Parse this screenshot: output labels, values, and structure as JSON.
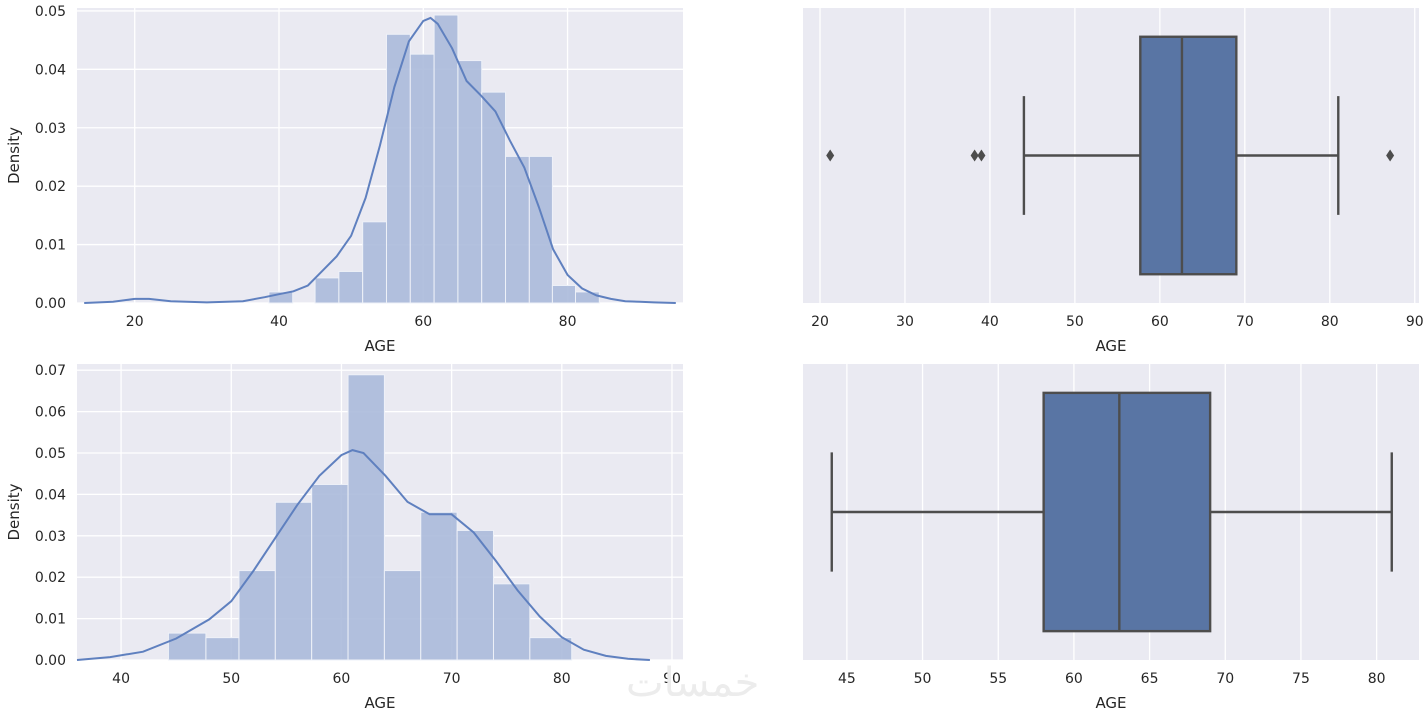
{
  "watermark": "خمسات",
  "colors": {
    "axes_bg": "#eaeaf2",
    "grid": "#ffffff",
    "hist": "#a8b8da",
    "kde": "#5f80bf",
    "box": "#5975a4",
    "box_edge": "#4d4d4d",
    "text": "#262626"
  },
  "chart_data": [
    {
      "type": "histogram",
      "xlabel": "AGE",
      "ylabel": "Density",
      "xlim": [
        12,
        96
      ],
      "ylim": [
        0,
        0.0505
      ],
      "xticks": [
        20,
        40,
        60,
        80
      ],
      "yticks": [
        0.0,
        0.01,
        0.02,
        0.03,
        0.04,
        0.05
      ],
      "ytick_labels": [
        "0.00",
        "0.01",
        "0.02",
        "0.03",
        "0.04",
        "0.05"
      ],
      "grid": true,
      "bins": [
        {
          "x0": 17.8,
          "x1": 21.2,
          "density": 0.0
        },
        {
          "x0": 38.6,
          "x1": 41.9,
          "density": 0.0019
        },
        {
          "x0": 45.0,
          "x1": 48.3,
          "density": 0.0043
        },
        {
          "x0": 48.3,
          "x1": 51.6,
          "density": 0.0054
        },
        {
          "x0": 51.6,
          "x1": 54.9,
          "density": 0.0139
        },
        {
          "x0": 54.9,
          "x1": 58.2,
          "density": 0.046
        },
        {
          "x0": 58.2,
          "x1": 61.5,
          "density": 0.0426
        },
        {
          "x0": 61.5,
          "x1": 64.8,
          "density": 0.0493
        },
        {
          "x0": 64.8,
          "x1": 68.1,
          "density": 0.0415
        },
        {
          "x0": 68.1,
          "x1": 71.4,
          "density": 0.0361
        },
        {
          "x0": 71.4,
          "x1": 74.7,
          "density": 0.0251
        },
        {
          "x0": 74.7,
          "x1": 77.9,
          "density": 0.0251
        },
        {
          "x0": 77.9,
          "x1": 81.1,
          "density": 0.003
        },
        {
          "x0": 81.1,
          "x1": 84.4,
          "density": 0.0019
        }
      ],
      "kde": {
        "x": [
          13,
          17,
          20,
          22,
          25,
          30,
          35,
          38,
          40,
          42,
          44,
          46,
          48,
          50,
          52,
          54,
          56,
          58,
          60,
          61,
          62,
          64,
          66,
          68,
          70,
          72,
          74,
          76,
          78,
          80,
          82,
          84,
          86,
          88,
          90,
          92,
          95
        ],
        "y": [
          0.0,
          0.0002,
          0.0007,
          0.0007,
          0.0003,
          0.0001,
          0.0003,
          0.001,
          0.0015,
          0.002,
          0.003,
          0.0055,
          0.008,
          0.0115,
          0.018,
          0.027,
          0.037,
          0.0448,
          0.0483,
          0.0488,
          0.0478,
          0.0436,
          0.038,
          0.0355,
          0.0328,
          0.0278,
          0.0232,
          0.0165,
          0.0092,
          0.0048,
          0.0025,
          0.0013,
          0.0007,
          0.0003,
          0.0002,
          0.0001,
          0.0
        ]
      }
    },
    {
      "type": "box",
      "xlabel": "AGE",
      "xlim": [
        18,
        90.5
      ],
      "xticks": [
        20,
        30,
        40,
        50,
        60,
        70,
        80,
        90
      ],
      "grid": true,
      "stats": {
        "whisker_low": 44,
        "q1": 57.7,
        "median": 62.6,
        "q3": 69,
        "whisker_high": 81
      },
      "outliers": [
        21.2,
        38.2,
        39.0,
        87.1
      ]
    },
    {
      "type": "histogram",
      "xlabel": "AGE",
      "ylabel": "Density",
      "xlim": [
        36,
        91
      ],
      "ylim": [
        0,
        0.0715
      ],
      "xticks": [
        40,
        50,
        60,
        70,
        80,
        90
      ],
      "yticks": [
        0.0,
        0.01,
        0.02,
        0.03,
        0.04,
        0.05,
        0.06,
        0.07
      ],
      "ytick_labels": [
        "0.00",
        "0.01",
        "0.02",
        "0.03",
        "0.04",
        "0.05",
        "0.06",
        "0.07"
      ],
      "grid": true,
      "bins": [
        {
          "x0": 44.3,
          "x1": 47.7,
          "density": 0.0065
        },
        {
          "x0": 47.7,
          "x1": 50.7,
          "density": 0.0054
        },
        {
          "x0": 50.7,
          "x1": 54.0,
          "density": 0.0216
        },
        {
          "x0": 54.0,
          "x1": 57.3,
          "density": 0.0381
        },
        {
          "x0": 57.3,
          "x1": 60.6,
          "density": 0.0424
        },
        {
          "x0": 60.6,
          "x1": 63.9,
          "density": 0.0689
        },
        {
          "x0": 63.9,
          "x1": 67.2,
          "density": 0.0216
        },
        {
          "x0": 67.2,
          "x1": 70.5,
          "density": 0.0357
        },
        {
          "x0": 70.5,
          "x1": 73.8,
          "density": 0.0313
        },
        {
          "x0": 73.8,
          "x1": 77.1,
          "density": 0.0184
        },
        {
          "x0": 77.1,
          "x1": 80.9,
          "density": 0.0054
        }
      ],
      "kde": {
        "x": [
          36,
          39,
          42,
          45,
          48,
          50,
          52,
          54,
          56,
          58,
          60,
          61,
          62,
          64,
          66,
          68,
          70,
          72,
          74,
          76,
          78,
          80,
          82,
          84,
          86,
          88
        ],
        "y": [
          0.0,
          0.0007,
          0.002,
          0.0052,
          0.0098,
          0.0142,
          0.0215,
          0.0295,
          0.0375,
          0.0445,
          0.0495,
          0.0507,
          0.05,
          0.0445,
          0.0382,
          0.0352,
          0.0352,
          0.0308,
          0.024,
          0.0168,
          0.0105,
          0.0055,
          0.0025,
          0.001,
          0.0003,
          0.0
        ]
      }
    },
    {
      "type": "box",
      "xlabel": "AGE",
      "xlim": [
        42.1,
        82.8
      ],
      "xticks": [
        45,
        50,
        55,
        60,
        65,
        70,
        75,
        80
      ],
      "grid": true,
      "stats": {
        "whisker_low": 44,
        "q1": 58,
        "median": 63,
        "q3": 69,
        "whisker_high": 81
      },
      "outliers": []
    }
  ]
}
